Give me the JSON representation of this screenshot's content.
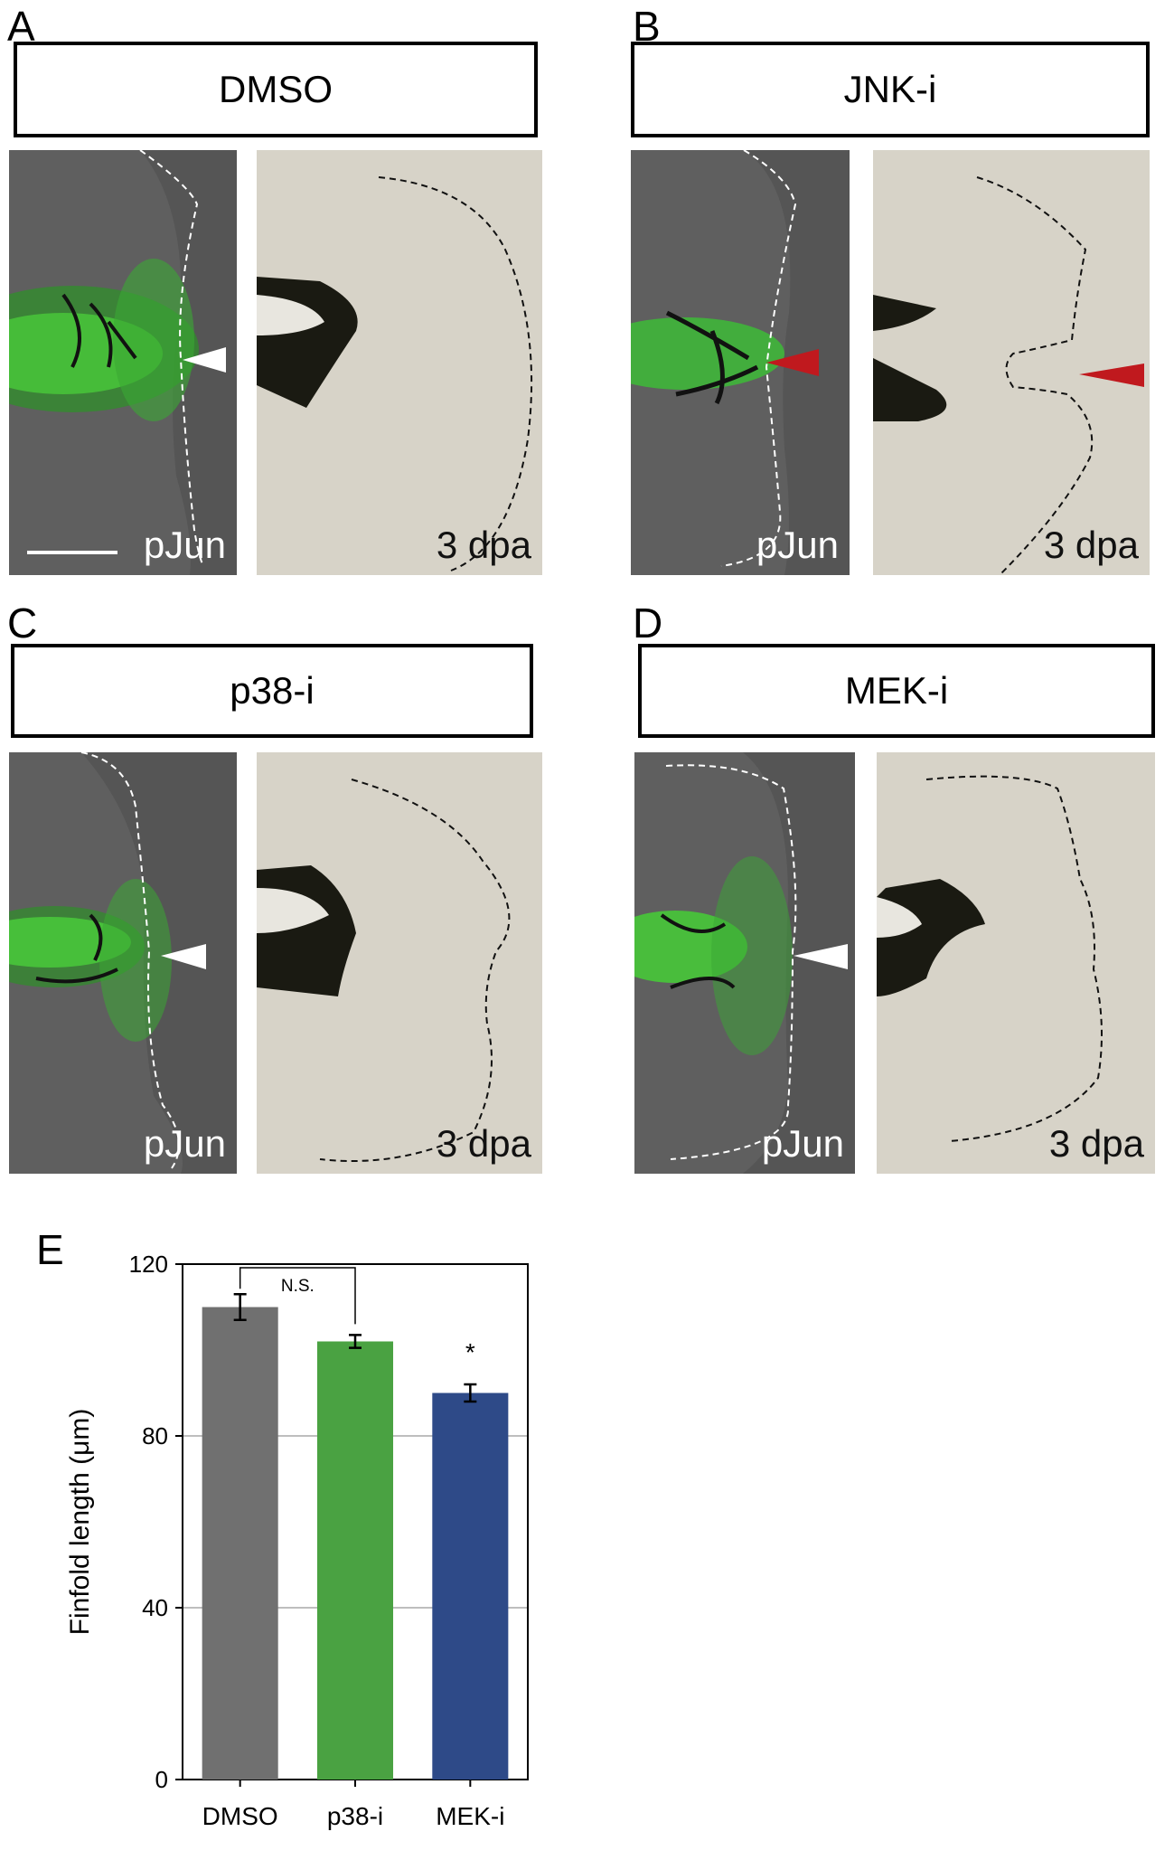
{
  "panels": [
    {
      "letter": "A",
      "condition": "DMSO",
      "stain_label": "pJun",
      "stage_label": "3 dpa"
    },
    {
      "letter": "B",
      "condition": "JNK-i",
      "stain_label": "pJun",
      "stage_label": "3 dpa"
    },
    {
      "letter": "C",
      "condition": "p38-i",
      "stain_label": "pJun",
      "stage_label": "3 dpa"
    },
    {
      "letter": "D",
      "condition": "MEK-i",
      "stain_label": "pJun",
      "stage_label": "3 dpa"
    }
  ],
  "arrowheads": {
    "white": "#ffffff",
    "red": "#c0191e"
  },
  "chart_panel_letter": "E",
  "chart_data": {
    "type": "bar",
    "categories": [
      "DMSO",
      "p38-i",
      "MEK-i"
    ],
    "values": [
      110,
      102,
      90
    ],
    "errors": [
      3,
      1.5,
      2
    ],
    "colors": [
      "#707070",
      "#4aa242",
      "#2e4a88"
    ],
    "ylabel": "Finfold length (μm)",
    "ylim": [
      0,
      120
    ],
    "yticks": [
      0,
      40,
      80,
      120
    ],
    "grid": true,
    "annotations": [
      {
        "text": "N.S.",
        "between": [
          "DMSO",
          "p38-i"
        ]
      },
      {
        "text": "*",
        "above": "MEK-i"
      }
    ]
  }
}
